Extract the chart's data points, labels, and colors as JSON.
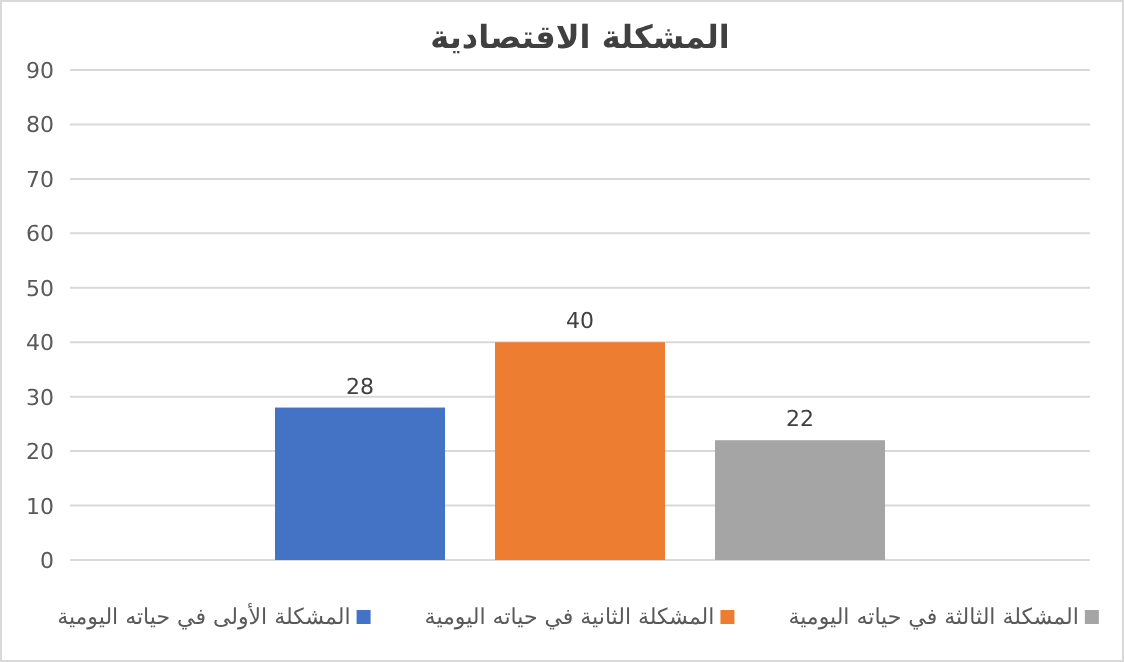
{
  "chart_data": {
    "type": "bar",
    "title": "المشكلة الاقتصادية",
    "categories": [
      null
    ],
    "series": [
      {
        "name": "المشكلة الأولى في حياته اليومية",
        "color": "#4472c4",
        "values": [
          28
        ]
      },
      {
        "name": "المشكلة الثانية في حياته اليومية",
        "color": "#ed7d31",
        "values": [
          40
        ]
      },
      {
        "name": "المشكلة الثالثة في حياته اليومية",
        "color": "#a5a5a5",
        "values": [
          22
        ]
      }
    ],
    "ylim": [
      0,
      90
    ],
    "yticks": [
      0,
      10,
      20,
      30,
      40,
      50,
      60,
      70,
      80,
      90
    ],
    "grid": "y",
    "legend": "bottom",
    "data_labels": true
  }
}
